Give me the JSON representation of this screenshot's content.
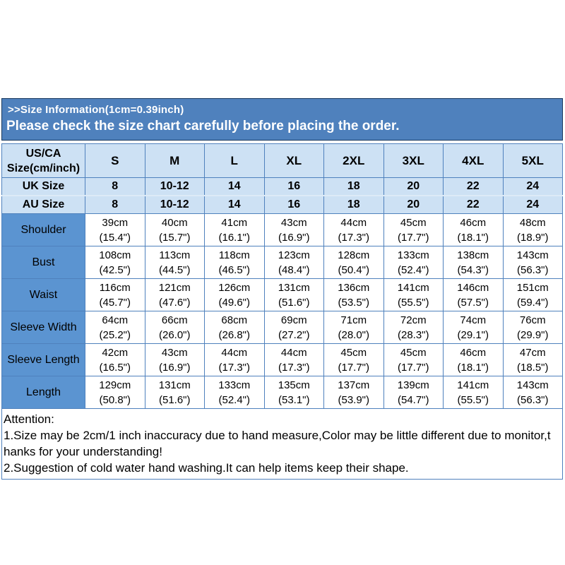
{
  "banner": {
    "line1": ">>Size Information(1cm=0.39inch)",
    "line2": "Please check the size chart carefully before placing the order."
  },
  "table": {
    "header": {
      "label_lines": [
        "US/CA",
        "Size(cm/inch)"
      ],
      "sizes": [
        "S",
        "M",
        "L",
        "XL",
        "2XL",
        "3XL",
        "4XL",
        "5XL"
      ]
    },
    "size_rows": [
      {
        "label": "UK Size",
        "values": [
          "8",
          "10-12",
          "14",
          "16",
          "18",
          "20",
          "22",
          "24"
        ]
      },
      {
        "label": "AU Size",
        "values": [
          "8",
          "10-12",
          "14",
          "16",
          "18",
          "20",
          "22",
          "24"
        ]
      }
    ],
    "measure_rows": [
      {
        "label": "Shoulder",
        "cm": [
          "39cm",
          "40cm",
          "41cm",
          "43cm",
          "44cm",
          "45cm",
          "46cm",
          "48cm"
        ],
        "inch": [
          "(15.4\")",
          "(15.7\")",
          "(16.1\")",
          "(16.9\")",
          "(17.3\")",
          "(17.7\")",
          "(18.1\")",
          "(18.9\")"
        ]
      },
      {
        "label": "Bust",
        "cm": [
          "108cm",
          "113cm",
          "118cm",
          "123cm",
          "128cm",
          "133cm",
          "138cm",
          "143cm"
        ],
        "inch": [
          "(42.5\")",
          "(44.5\")",
          "(46.5\")",
          "(48.4\")",
          "(50.4\")",
          "(52.4\")",
          "(54.3\")",
          "(56.3\")"
        ]
      },
      {
        "label": "Waist",
        "cm": [
          "116cm",
          "121cm",
          "126cm",
          "131cm",
          "136cm",
          "141cm",
          "146cm",
          "151cm"
        ],
        "inch": [
          "(45.7\")",
          "(47.6\")",
          "(49.6\")",
          "(51.6\")",
          "(53.5\")",
          "(55.5\")",
          "(57.5\")",
          "(59.4\")"
        ]
      },
      {
        "label": "Sleeve Width",
        "cm": [
          "64cm",
          "66cm",
          "68cm",
          "69cm",
          "71cm",
          "72cm",
          "74cm",
          "76cm"
        ],
        "inch": [
          "(25.2\")",
          "(26.0\")",
          "(26.8\")",
          "(27.2\")",
          "(28.0\")",
          "(28.3\")",
          "(29.1\")",
          "(29.9\")"
        ]
      },
      {
        "label": "Sleeve Length",
        "cm": [
          "42cm",
          "43cm",
          "44cm",
          "44cm",
          "45cm",
          "45cm",
          "46cm",
          "47cm"
        ],
        "inch": [
          "(16.5\")",
          "(16.9\")",
          "(17.3\")",
          "(17.3\")",
          "(17.7\")",
          "(17.7\")",
          "(18.1\")",
          "(18.5\")"
        ]
      },
      {
        "label": "Length",
        "cm": [
          "129cm",
          "131cm",
          "133cm",
          "135cm",
          "137cm",
          "139cm",
          "141cm",
          "143cm"
        ],
        "inch": [
          "(50.8\")",
          "(51.6\")",
          "(52.4\")",
          "(53.1\")",
          "(53.9\")",
          "(54.7\")",
          "(55.5\")",
          "(56.3\")"
        ]
      }
    ]
  },
  "attention": {
    "lines": [
      "Attention:",
      "1.Size may be 2cm/1 inch inaccuracy due to hand measure,Color may be little different due to monitor,t",
      "hanks for your understanding!",
      "2.Suggestion of cold water hand washing.It can help items keep their shape."
    ]
  },
  "colors": {
    "banner_bg": "#4f81bd",
    "banner_border": "#17375d",
    "light_row_bg": "#cde1f4",
    "label_col_bg": "#5b94d1",
    "grid_border": "#4f81bd",
    "light_sep": "#ddebf7"
  }
}
